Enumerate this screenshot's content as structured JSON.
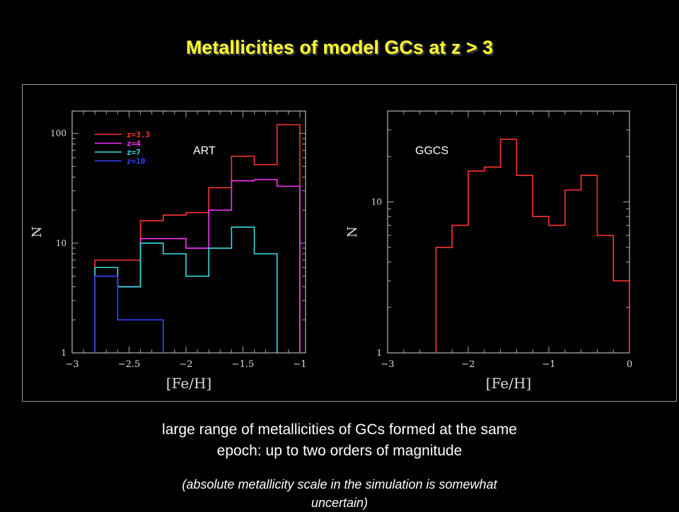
{
  "slide": {
    "title": "Metallicities of model GCs at z > 3",
    "caption_lines": [
      "large range of metallicities of GCs formed at the same",
      "epoch: up to two orders of magnitude"
    ],
    "note_lines": [
      "(absolute metallicity scale in the simulation is somewhat",
      "uncertain)"
    ]
  },
  "chart_data": [
    {
      "type": "line",
      "subtype": "step-histogram",
      "title": "",
      "annotation": "ART",
      "xlabel": "[Fe/H]",
      "ylabel": "N",
      "xlim": [
        -3.0,
        -0.95
      ],
      "ylim": [
        1,
        160
      ],
      "yscale": "log",
      "xticks": [
        -3,
        -2.5,
        -2,
        -1.5,
        -1
      ],
      "xtick_labels": [
        "−3",
        "−2.5",
        "−2",
        "−1.5",
        "−1"
      ],
      "yticks": [
        1,
        10,
        100
      ],
      "ytick_labels": [
        "1",
        "10",
        "100"
      ],
      "legend_position": "top-left",
      "series": [
        {
          "name": "z=3.3",
          "color": "#ff3333",
          "bin_edges": [
            -2.8,
            -2.6,
            -2.4,
            -2.2,
            -2.0,
            -1.8,
            -1.6,
            -1.4,
            -1.2,
            -1.0
          ],
          "values": [
            7,
            7,
            16,
            18,
            19,
            32,
            62,
            52,
            120
          ]
        },
        {
          "name": "z=4",
          "color": "#ff33ff",
          "bin_edges": [
            -2.8,
            -2.6,
            -2.4,
            -2.2,
            -2.0,
            -1.8,
            -1.6,
            -1.4,
            -1.2,
            -1.0
          ],
          "values": [
            6,
            4,
            11,
            11,
            9,
            20,
            37,
            38,
            33
          ]
        },
        {
          "name": "z=7",
          "color": "#33dddd",
          "bin_edges": [
            -2.8,
            -2.6,
            -2.4,
            -2.2,
            -2.0,
            -1.8,
            -1.6,
            -1.4,
            -1.2
          ],
          "values": [
            6,
            4,
            10,
            8,
            5,
            9,
            14,
            8
          ]
        },
        {
          "name": "z=10",
          "color": "#3344ff",
          "bin_edges": [
            -2.8,
            -2.6,
            -2.4,
            -2.2
          ],
          "values": [
            5,
            2,
            2
          ]
        }
      ]
    },
    {
      "type": "line",
      "subtype": "step-histogram",
      "title": "",
      "annotation": "GGCS",
      "xlabel": "[Fe/H]",
      "ylabel": "N",
      "xlim": [
        -3.0,
        0.0
      ],
      "ylim": [
        1,
        40
      ],
      "yscale": "log",
      "xticks": [
        -3,
        -2,
        -1,
        0
      ],
      "xtick_labels": [
        "−3",
        "−2",
        "−1",
        "0"
      ],
      "yticks": [
        1,
        10
      ],
      "ytick_labels": [
        "1",
        "10"
      ],
      "series": [
        {
          "name": "",
          "color": "#ff3333",
          "bin_edges": [
            -2.4,
            -2.2,
            -2.0,
            -1.8,
            -1.6,
            -1.4,
            -1.2,
            -1.0,
            -0.8,
            -0.6,
            -0.4,
            -0.2,
            0.0
          ],
          "values": [
            5,
            7,
            16,
            17,
            26,
            15,
            8,
            7,
            12,
            15,
            6,
            3
          ]
        }
      ]
    }
  ]
}
